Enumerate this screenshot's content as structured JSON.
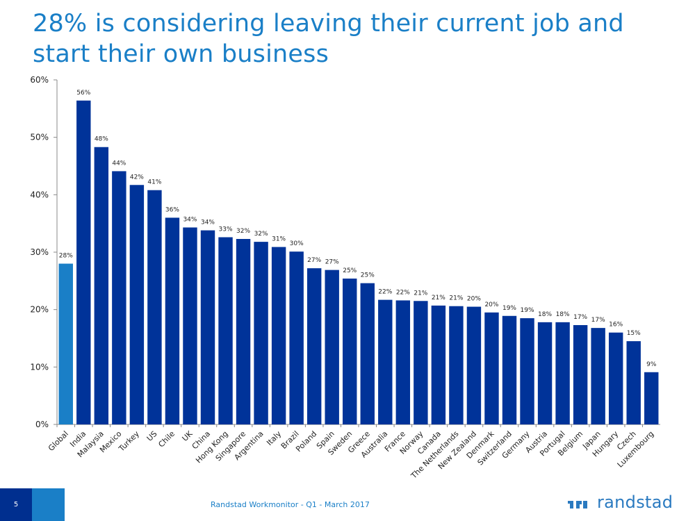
{
  "title": "28% is considering leaving their current job and start their own business",
  "footer": {
    "page_number": "5",
    "source": "Randstad Workmonitor - Q1 - March 2017",
    "logo_text": "randstad"
  },
  "colors": {
    "accent": "#1a7fc7",
    "bar_primary": "#003399",
    "bar_highlight": "#1a7fc7"
  },
  "chart_data": {
    "type": "bar",
    "categories": [
      "Global",
      "India",
      "Malaysia",
      "Mexico",
      "Turkey",
      "US",
      "Chile",
      "UK",
      "China",
      "Hong Kong",
      "Singapore",
      "Argentina",
      "Italy",
      "Brazil",
      "Poland",
      "Spain",
      "Sweden",
      "Greece",
      "Australia",
      "France",
      "Norway",
      "Canada",
      "The Netherlands",
      "New Zealand",
      "Denmark",
      "Switzerland",
      "Germany",
      "Austria",
      "Portugal",
      "Belgium",
      "Japan",
      "Hungary",
      "Czech",
      "Luxembourg"
    ],
    "values": [
      28.0,
      56.4,
      48.3,
      44.1,
      41.7,
      40.8,
      36.0,
      34.3,
      33.8,
      32.6,
      32.3,
      31.8,
      30.9,
      30.1,
      27.2,
      26.9,
      25.4,
      24.6,
      21.7,
      21.6,
      21.5,
      20.7,
      20.6,
      20.5,
      19.5,
      18.9,
      18.5,
      17.8,
      17.8,
      17.3,
      16.8,
      16.0,
      14.5,
      9.1
    ],
    "data_labels": [
      "28%",
      "56%",
      "48%",
      "44%",
      "42%",
      "41%",
      "36%",
      "34%",
      "34%",
      "33%",
      "32%",
      "32%",
      "31%",
      "30%",
      "27%",
      "27%",
      "25%",
      "25%",
      "22%",
      "22%",
      "21%",
      "21%",
      "21%",
      "20%",
      "20%",
      "19%",
      "19%",
      "18%",
      "18%",
      "17%",
      "17%",
      "16%",
      "15%",
      "9%"
    ],
    "highlight_index": 0,
    "ylim": [
      0,
      60
    ],
    "yticks": [
      0,
      10,
      20,
      30,
      40,
      50,
      60
    ],
    "ytick_labels": [
      "0%",
      "10%",
      "20%",
      "30%",
      "40%",
      "50%",
      "60%"
    ],
    "xlabel": "",
    "ylabel": "",
    "grid": false,
    "legend": "none"
  }
}
